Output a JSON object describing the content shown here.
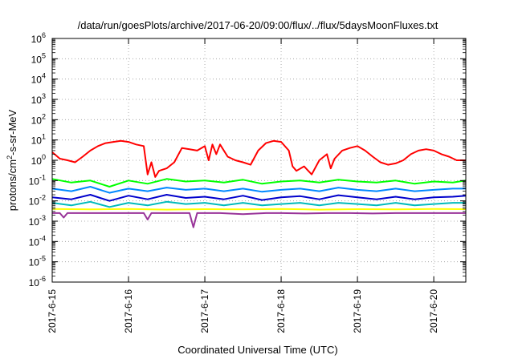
{
  "chart_data": {
    "type": "line",
    "title": "/data/run/goesPlots/archive/2017-06-20/09:00/flux/../flux/5daysMoonFluxes.txt",
    "xlabel": "Coordinated Universal Time (UTC)",
    "ylabel": {
      "pre": "protons/cm",
      "sup": "2",
      "post": "-s-sr-MeV"
    },
    "x_unit": "days from 2017-6-15 00:00 UTC",
    "xlim": [
      0,
      5.42
    ],
    "ylog": true,
    "ylim_exp": [
      -6,
      6
    ],
    "grid": true,
    "x_ticks": [
      {
        "label": "2017-6-15",
        "day": 0
      },
      {
        "label": "2017-6-16",
        "day": 1
      },
      {
        "label": "2017-6-17",
        "day": 2
      },
      {
        "label": "2017-6-18",
        "day": 3
      },
      {
        "label": "2017-6-19",
        "day": 4
      },
      {
        "label": "2017-6-20",
        "day": 5
      }
    ],
    "y_ticks": [
      {
        "base": "10",
        "exp": "-6",
        "e": -6
      },
      {
        "base": "10",
        "exp": "-5",
        "e": -5
      },
      {
        "base": "10",
        "exp": "-4",
        "e": -4
      },
      {
        "base": "10",
        "exp": "-3",
        "e": -3
      },
      {
        "base": "10",
        "exp": "-2",
        "e": -2
      },
      {
        "base": "10",
        "exp": "-1",
        "e": -1
      },
      {
        "base": "10",
        "exp": "0",
        "e": 0
      },
      {
        "base": "10",
        "exp": "1",
        "e": 1
      },
      {
        "base": "10",
        "exp": "2",
        "e": 2
      },
      {
        "base": "10",
        "exp": "3",
        "e": 3
      },
      {
        "base": "10",
        "exp": "4",
        "e": 4
      },
      {
        "base": "10",
        "exp": "5",
        "e": 5
      },
      {
        "base": "10",
        "exp": "6",
        "e": 6
      }
    ],
    "series": [
      {
        "color": "#ff0000",
        "x": [
          0,
          0.1,
          0.2,
          0.3,
          0.4,
          0.5,
          0.6,
          0.7,
          0.8,
          0.9,
          1.0,
          1.1,
          1.2,
          1.25,
          1.3,
          1.35,
          1.4,
          1.5,
          1.6,
          1.7,
          1.8,
          1.9,
          2.0,
          2.05,
          2.1,
          2.15,
          2.2,
          2.3,
          2.4,
          2.5,
          2.6,
          2.7,
          2.8,
          2.9,
          3.0,
          3.1,
          3.15,
          3.2,
          3.3,
          3.4,
          3.5,
          3.6,
          3.65,
          3.7,
          3.8,
          3.9,
          4.0,
          4.1,
          4.2,
          4.3,
          4.4,
          4.5,
          4.6,
          4.7,
          4.8,
          4.9,
          5.0,
          5.1,
          5.2,
          5.3,
          5.42
        ],
        "y": [
          2.5,
          1.2,
          1.0,
          0.8,
          1.5,
          3.0,
          5.0,
          7.0,
          8.0,
          9.0,
          8.0,
          6.0,
          5.0,
          0.2,
          0.8,
          0.15,
          0.3,
          0.4,
          0.8,
          4.0,
          3.5,
          3.0,
          5.0,
          1.0,
          6.0,
          2.0,
          6.0,
          1.5,
          1.0,
          0.8,
          0.6,
          3.0,
          7.0,
          9.0,
          8.0,
          3.0,
          0.5,
          0.3,
          0.5,
          0.2,
          1.0,
          2.0,
          0.4,
          1.2,
          3.0,
          4.0,
          5.0,
          3.0,
          1.5,
          0.8,
          0.6,
          0.7,
          1.0,
          2.0,
          3.0,
          3.5,
          3.0,
          2.0,
          1.5,
          1.0,
          1.0
        ]
      },
      {
        "color": "#00ff00",
        "x": [
          0,
          0.25,
          0.5,
          0.75,
          1.0,
          1.25,
          1.5,
          1.75,
          2.0,
          2.25,
          2.5,
          2.75,
          3.0,
          3.25,
          3.5,
          3.75,
          4.0,
          4.25,
          4.5,
          4.75,
          5.0,
          5.25,
          5.42
        ],
        "y": [
          0.12,
          0.08,
          0.1,
          0.05,
          0.1,
          0.07,
          0.12,
          0.09,
          0.1,
          0.08,
          0.11,
          0.07,
          0.09,
          0.1,
          0.08,
          0.11,
          0.09,
          0.08,
          0.1,
          0.07,
          0.09,
          0.08,
          0.1
        ]
      },
      {
        "color": "#0088ff",
        "x": [
          0,
          0.25,
          0.5,
          0.75,
          1.0,
          1.25,
          1.5,
          1.75,
          2.0,
          2.25,
          2.5,
          2.75,
          3.0,
          3.25,
          3.5,
          3.75,
          4.0,
          4.25,
          4.5,
          4.75,
          5.0,
          5.25,
          5.42
        ],
        "y": [
          0.04,
          0.03,
          0.05,
          0.025,
          0.04,
          0.03,
          0.045,
          0.035,
          0.04,
          0.03,
          0.04,
          0.028,
          0.035,
          0.04,
          0.03,
          0.045,
          0.035,
          0.03,
          0.04,
          0.03,
          0.035,
          0.04,
          0.04
        ]
      },
      {
        "color": "#0000cc",
        "x": [
          0,
          0.25,
          0.5,
          0.75,
          1.0,
          1.25,
          1.5,
          1.75,
          2.0,
          2.25,
          2.5,
          2.75,
          3.0,
          3.25,
          3.5,
          3.75,
          4.0,
          4.25,
          4.5,
          4.75,
          5.0,
          5.25,
          5.42
        ],
        "y": [
          0.015,
          0.012,
          0.02,
          0.01,
          0.018,
          0.012,
          0.02,
          0.014,
          0.016,
          0.012,
          0.018,
          0.011,
          0.015,
          0.017,
          0.012,
          0.019,
          0.015,
          0.012,
          0.016,
          0.012,
          0.015,
          0.016,
          0.018
        ]
      },
      {
        "color": "#00bbbb",
        "x": [
          0,
          0.25,
          0.5,
          0.75,
          1.0,
          1.25,
          1.5,
          1.75,
          2.0,
          2.25,
          2.5,
          2.75,
          3.0,
          3.25,
          3.5,
          3.75,
          4.0,
          4.25,
          4.5,
          4.75,
          5.0,
          5.25,
          5.42
        ],
        "y": [
          0.008,
          0.006,
          0.009,
          0.005,
          0.008,
          0.006,
          0.009,
          0.007,
          0.008,
          0.006,
          0.008,
          0.006,
          0.007,
          0.008,
          0.006,
          0.008,
          0.007,
          0.006,
          0.008,
          0.006,
          0.007,
          0.008,
          0.008
        ]
      },
      {
        "color": "#ffff00",
        "x": [
          0,
          0.5,
          1.0,
          1.5,
          2.0,
          2.5,
          3.0,
          3.5,
          4.0,
          4.5,
          5.0,
          5.42
        ],
        "y": [
          0.004,
          0.0038,
          0.004,
          0.0037,
          0.0039,
          0.0038,
          0.004,
          0.0037,
          0.0039,
          0.0038,
          0.004,
          0.0039
        ]
      },
      {
        "color": "#993399",
        "x": [
          0,
          0.1,
          0.15,
          0.2,
          0.5,
          0.8,
          1.0,
          1.2,
          1.25,
          1.3,
          1.6,
          1.8,
          1.85,
          1.9,
          2.2,
          2.5,
          2.8,
          3.0,
          3.3,
          3.6,
          3.9,
          4.2,
          4.5,
          4.8,
          5.1,
          5.42
        ],
        "y": [
          0.0025,
          0.0025,
          0.0015,
          0.0025,
          0.0025,
          0.0025,
          0.0025,
          0.0025,
          0.0012,
          0.0025,
          0.0025,
          0.0025,
          0.0005,
          0.0025,
          0.0025,
          0.0022,
          0.0025,
          0.0025,
          0.0024,
          0.0025,
          0.0025,
          0.0024,
          0.0025,
          0.0025,
          0.0025,
          0.0025
        ]
      }
    ]
  }
}
